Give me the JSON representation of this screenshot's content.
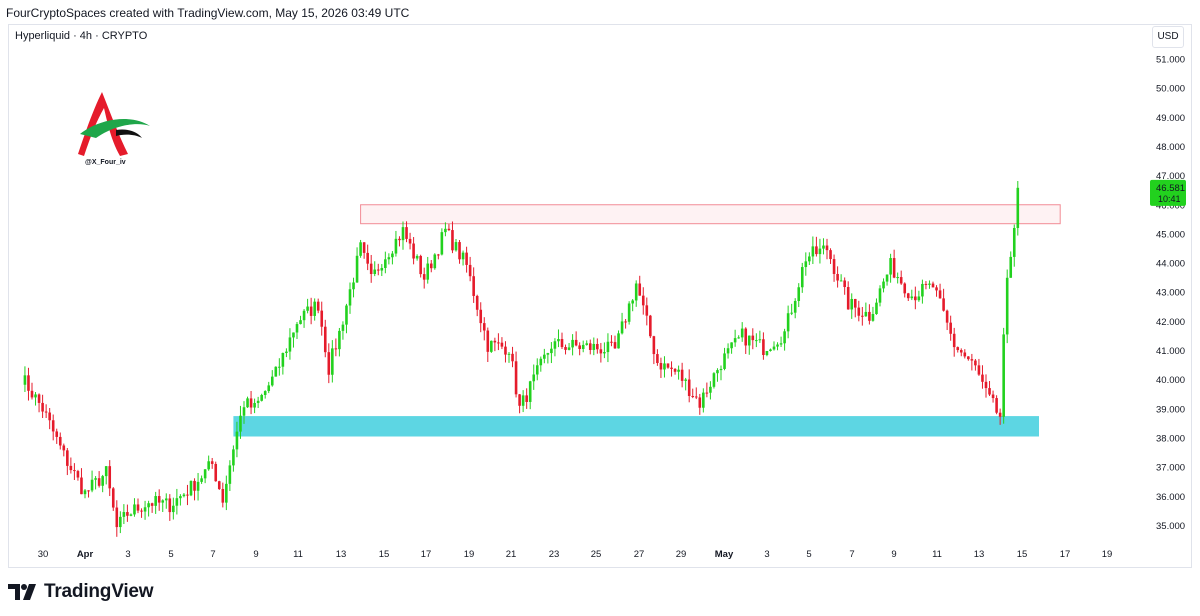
{
  "header": {
    "caption": "FourCryptoSpaces created with TradingView.com, May 15, 2026 03:49 UTC"
  },
  "symbol": {
    "label": "Hyperliquid · 4h · CRYPTO"
  },
  "currency": "USD",
  "watermark": {
    "handle": "@X_Four_iv"
  },
  "footer": {
    "brand": "TradingView"
  },
  "colors": {
    "up": "#22d11e",
    "down": "#e51b2b",
    "support_zone": "#5dd6e3",
    "resistance_zone": "#f7b7bd",
    "price_badge": "#22d11e"
  },
  "chart_data": {
    "type": "candlestick",
    "title": "",
    "price_axis": {
      "ticks": [
        "51.000",
        "50.000",
        "49.000",
        "48.000",
        "47.000",
        "46.000",
        "45.000",
        "44.000",
        "43.000",
        "42.000",
        "41.000",
        "40.000",
        "39.000",
        "38.000",
        "37.000",
        "36.000",
        "35.000"
      ],
      "ylim": [
        34.5,
        51.5
      ]
    },
    "time_axis": {
      "ticks": [
        "30",
        "Apr",
        "3",
        "5",
        "7",
        "9",
        "11",
        "13",
        "15",
        "17",
        "19",
        "21",
        "23",
        "25",
        "27",
        "29",
        "May",
        "3",
        "5",
        "7",
        "9",
        "11",
        "13",
        "15",
        "17",
        "19"
      ]
    },
    "last_price": {
      "value": "46.581",
      "countdown": "10:41"
    },
    "zones": [
      {
        "name": "resistance",
        "from": "Apr 14",
        "to": "May 17",
        "low": 45.35,
        "high": 46.0
      },
      {
        "name": "support",
        "from": "Apr 8",
        "to": "May 16",
        "low": 38.05,
        "high": 38.75
      }
    ],
    "waypoints": [
      [
        "Mar 29",
        40.1
      ],
      [
        "Mar 30",
        39.0
      ],
      [
        "Mar 31",
        37.4
      ],
      [
        "Apr 1",
        36.1
      ],
      [
        "Apr 2",
        36.8
      ],
      [
        "Apr 2.5",
        34.9
      ],
      [
        "Apr 3",
        35.4
      ],
      [
        "Apr 4",
        35.8
      ],
      [
        "Apr 5",
        35.7
      ],
      [
        "Apr 6",
        36.3
      ],
      [
        "Apr 7",
        37.1
      ],
      [
        "Apr 7.5",
        35.9
      ],
      [
        "Apr 8",
        37.7
      ],
      [
        "Apr 8.5",
        39.2
      ],
      [
        "Apr 9",
        39.0
      ],
      [
        "Apr 10",
        40.2
      ],
      [
        "Apr 11",
        42.0
      ],
      [
        "Apr 12",
        42.6
      ],
      [
        "Apr 12.5",
        40.4
      ],
      [
        "Apr 13",
        41.6
      ],
      [
        "Apr 14",
        44.5
      ],
      [
        "Apr 14.5",
        43.4
      ],
      [
        "Apr 15",
        44.1
      ],
      [
        "Apr 16",
        45.1
      ],
      [
        "Apr 17",
        43.5
      ],
      [
        "Apr 18",
        45.1
      ],
      [
        "Apr 19",
        43.9
      ],
      [
        "Apr 20",
        41.2
      ],
      [
        "Apr 21",
        41.1
      ],
      [
        "Apr 21.5",
        39.0
      ],
      [
        "Apr 23",
        41.2
      ],
      [
        "Apr 25",
        41.1
      ],
      [
        "Apr 26",
        41.0
      ],
      [
        "Apr 27",
        43.3
      ],
      [
        "Apr 28",
        40.6
      ],
      [
        "Apr 29",
        40.2
      ],
      [
        "Apr 30",
        39.2
      ],
      [
        "May 1",
        40.6
      ],
      [
        "May 2",
        41.5
      ],
      [
        "May 3",
        41.1
      ],
      [
        "May 4",
        41.6
      ],
      [
        "May 5",
        44.2
      ],
      [
        "May 6",
        44.5
      ],
      [
        "May 7",
        42.6
      ],
      [
        "May 8",
        42.2
      ],
      [
        "May 9",
        43.9
      ],
      [
        "May 10",
        42.9
      ],
      [
        "May 11",
        43.2
      ],
      [
        "May 12",
        41.2
      ],
      [
        "May 13",
        40.4
      ],
      [
        "May 13.5",
        39.5
      ],
      [
        "May 14",
        38.9
      ],
      [
        "May 14.2",
        38.7
      ],
      [
        "May 14.4",
        42.6
      ],
      [
        "May 14.7",
        44.5
      ],
      [
        "May 15",
        46.6
      ]
    ]
  }
}
